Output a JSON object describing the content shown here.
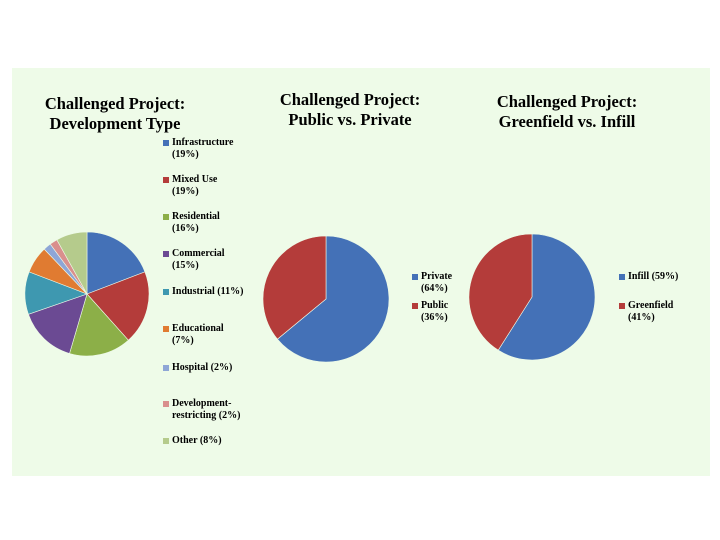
{
  "chart_data": [
    {
      "type": "pie",
      "title": "Challenged Project:\nDevelopment Type",
      "slices": [
        {
          "label": "Infrastructure\n(19%)",
          "value": 19,
          "color": "#4471b7"
        },
        {
          "label": "Mixed Use\n(19%)",
          "value": 19,
          "color": "#b43c3a"
        },
        {
          "label": "Residential\n(16%)",
          "value": 16,
          "color": "#8caf48"
        },
        {
          "label": "Commercial\n(15%)",
          "value": 15,
          "color": "#6b4a93"
        },
        {
          "label": "Industrial (11%)",
          "value": 11,
          "color": "#3e98b0"
        },
        {
          "label": "Educational\n(7%)",
          "value": 7,
          "color": "#e07b31"
        },
        {
          "label": "Hospital (2%)",
          "value": 2,
          "color": "#8ea6d6"
        },
        {
          "label": "Development-\nrestricting (2%)",
          "value": 2,
          "color": "#d98f8d"
        },
        {
          "label": "Other (8%)",
          "value": 8,
          "color": "#b5cb8c"
        }
      ]
    },
    {
      "type": "pie",
      "title": "Challenged Project:\nPublic vs. Private",
      "slices": [
        {
          "label": "Private\n(64%)",
          "value": 64,
          "color": "#4471b7"
        },
        {
          "label": "Public\n(36%)",
          "value": 36,
          "color": "#b43c3a"
        }
      ]
    },
    {
      "type": "pie",
      "title": "Challenged Project:\nGreenfield vs. Infill",
      "slices": [
        {
          "label": "Infill (59%)",
          "value": 59,
          "color": "#4471b7"
        },
        {
          "label": "Greenfield\n(41%)",
          "value": 41,
          "color": "#b43c3a"
        }
      ]
    }
  ]
}
